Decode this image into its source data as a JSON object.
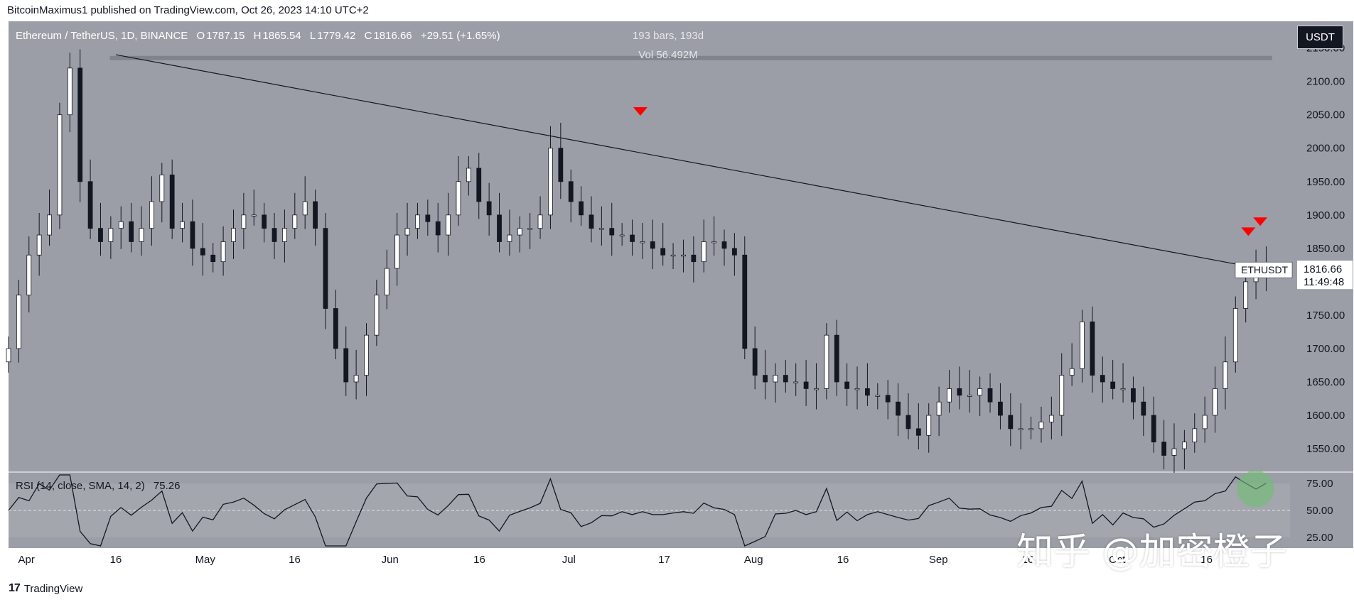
{
  "header": {
    "publisher": "BitcoinMaximus1 published on TradingView.com, Oct 26, 2023 14:10 UTC+2"
  },
  "legend": {
    "symbol": "Ethereum / TetherUS, 1D, BINANCE",
    "open_label": "O",
    "open": "1787.15",
    "high_label": "H",
    "high": "1865.54",
    "low_label": "L",
    "low": "1779.42",
    "close_label": "C",
    "close": "1816.66",
    "change": "+29.51 (+1.65%)"
  },
  "info": {
    "bars": "193 bars, 193d",
    "vol": "Vol 56.492M"
  },
  "currency_button": "USDT",
  "price_tag": {
    "symbol": "ETHUSDT",
    "price": "1816.66",
    "countdown": "11:49:48"
  },
  "rsi": {
    "label": "RSI (14, close, SMA, 14, 2)",
    "value": "75.26"
  },
  "footer": {
    "brand": "TradingView"
  },
  "watermark": "知乎 @加密橙子",
  "colors": {
    "background": "#9b9ea6",
    "up": "#ffffff",
    "down": "#131722",
    "marker": "#ff0000",
    "rsi_highlight": "#6fbf73"
  },
  "chart_data": {
    "type": "candlestick",
    "title": "Ethereum / TetherUS, 1D, BINANCE",
    "y_ticks": [
      1550,
      1600,
      1650,
      1700,
      1750,
      1800,
      1850,
      1900,
      1950,
      2000,
      2050,
      2100,
      2150
    ],
    "y_tick_labels": [
      "1550.00",
      "1600.00",
      "1650.00",
      "1700.00",
      "1750.00",
      "1800.00",
      "1850.00",
      "1900.00",
      "1950.00",
      "2000.00",
      "2050.00",
      "2100.00",
      "2150.00"
    ],
    "ylim": [
      1515,
      2190
    ],
    "x_labels": [
      "Apr",
      "16",
      "May",
      "16",
      "Jun",
      "16",
      "Jul",
      "17",
      "Aug",
      "16",
      "Sep",
      "16",
      "Oct",
      "16"
    ],
    "last_price": 1816.66,
    "resistance_line": {
      "from": {
        "date": "2023-04-16",
        "value": 2140
      },
      "to": {
        "date": "2023-10-26",
        "value": 1818
      }
    },
    "horizontal_resistance": 2135,
    "sell_markers": [
      {
        "date": "2023-07-13",
        "value": 2055
      },
      {
        "date": "2023-10-23",
        "value": 1875
      },
      {
        "date": "2023-10-25",
        "value": 1890
      }
    ],
    "close_path": [
      1700,
      1780,
      1840,
      1870,
      1900,
      2050,
      2120,
      1950,
      1880,
      1860,
      1880,
      1890,
      1860,
      1880,
      1920,
      1960,
      1880,
      1890,
      1850,
      1840,
      1830,
      1860,
      1880,
      1900,
      1900,
      1880,
      1860,
      1880,
      1900,
      1920,
      1880,
      1760,
      1700,
      1650,
      1660,
      1720,
      1780,
      1820,
      1870,
      1880,
      1900,
      1890,
      1870,
      1900,
      1950,
      1970,
      1920,
      1900,
      1860,
      1870,
      1880,
      1880,
      1900,
      2000,
      1950,
      1920,
      1900,
      1880,
      1880,
      1870,
      1870,
      1860,
      1860,
      1850,
      1840,
      1840,
      1840,
      1830,
      1860,
      1860,
      1850,
      1840,
      1700,
      1660,
      1650,
      1660,
      1650,
      1650,
      1640,
      1640,
      1720,
      1650,
      1640,
      1640,
      1630,
      1630,
      1620,
      1600,
      1580,
      1570,
      1600,
      1620,
      1640,
      1630,
      1630,
      1640,
      1620,
      1600,
      1580,
      1580,
      1580,
      1590,
      1600,
      1660,
      1670,
      1740,
      1660,
      1650,
      1640,
      1640,
      1620,
      1600,
      1560,
      1540,
      1550,
      1560,
      1580,
      1600,
      1640,
      1680,
      1760,
      1800,
      1820,
      1817
    ],
    "rsi_panel": {
      "ticks": [
        25,
        50,
        75
      ],
      "tick_labels": [
        "25.00",
        "50.00",
        "75.00"
      ],
      "ylim": [
        15,
        85
      ],
      "current": 75.26
    }
  }
}
